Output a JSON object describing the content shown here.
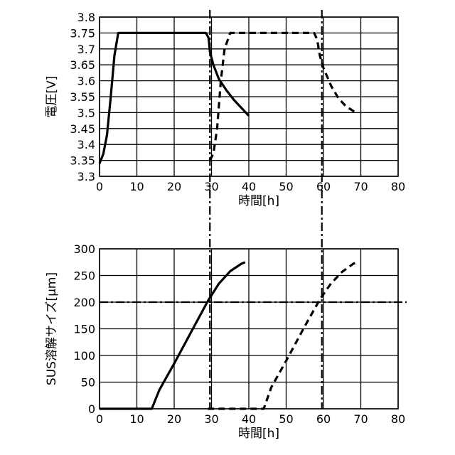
{
  "chart_data": [
    {
      "type": "line",
      "xlabel": "時間[h]",
      "ylabel": "電圧[V]",
      "xlim": [
        0,
        80
      ],
      "ylim": [
        3.3,
        3.8
      ],
      "x_ticks": [
        "0",
        "10",
        "20",
        "30",
        "40",
        "50",
        "60",
        "70",
        "80"
      ],
      "y_ticks": [
        "3.3",
        "3.35",
        "3.4",
        "3.45",
        "3.5",
        "3.55",
        "3.6",
        "3.65",
        "3.7",
        "3.75",
        "3.8"
      ],
      "grid": true,
      "series": [
        {
          "style": "solid",
          "points": [
            [
              0,
              3.34
            ],
            [
              1,
              3.37
            ],
            [
              2,
              3.43
            ],
            [
              3,
              3.55
            ],
            [
              4,
              3.68
            ],
            [
              5,
              3.75
            ],
            [
              10,
              3.75
            ],
            [
              20,
              3.75
            ],
            [
              28.5,
              3.75
            ],
            [
              29.2,
              3.735
            ],
            [
              29.6,
              3.69
            ],
            [
              30.5,
              3.65
            ],
            [
              32,
              3.605
            ],
            [
              34,
              3.57
            ],
            [
              36,
              3.54
            ],
            [
              38,
              3.515
            ],
            [
              40,
              3.49
            ]
          ]
        },
        {
          "style": "dashed",
          "points": [
            [
              29.5,
              3.35
            ],
            [
              30.5,
              3.37
            ],
            [
              31.5,
              3.45
            ],
            [
              32.5,
              3.6
            ],
            [
              33.5,
              3.7
            ],
            [
              35,
              3.75
            ],
            [
              40,
              3.75
            ],
            [
              50,
              3.75
            ],
            [
              57.5,
              3.75
            ],
            [
              58.3,
              3.73
            ],
            [
              59,
              3.68
            ],
            [
              60,
              3.64
            ],
            [
              62,
              3.585
            ],
            [
              64,
              3.545
            ],
            [
              66,
              3.52
            ],
            [
              68,
              3.505
            ],
            [
              69,
              3.5
            ]
          ]
        }
      ],
      "vlines": [
        29,
        59
      ]
    },
    {
      "type": "line",
      "xlabel": "時間[h]",
      "ylabel": "SUS溶解サイズ[μm]",
      "xlim": [
        0,
        80
      ],
      "ylim": [
        0,
        300
      ],
      "x_ticks": [
        "0",
        "10",
        "20",
        "30",
        "40",
        "50",
        "60",
        "70",
        "80"
      ],
      "y_ticks": [
        "0",
        "50",
        "100",
        "150",
        "200",
        "250",
        "300"
      ],
      "grid": true,
      "series": [
        {
          "style": "solid",
          "points": [
            [
              0,
              0
            ],
            [
              14,
              0
            ],
            [
              16,
              35
            ],
            [
              20,
              85
            ],
            [
              25,
              150
            ],
            [
              29,
              202
            ],
            [
              32,
              235
            ],
            [
              35,
              258
            ],
            [
              38,
              272
            ],
            [
              39,
              275
            ]
          ]
        },
        {
          "style": "dashed",
          "points": [
            [
              29,
              0
            ],
            [
              44,
              0
            ],
            [
              46,
              40
            ],
            [
              50,
              90
            ],
            [
              55,
              155
            ],
            [
              59,
              205
            ],
            [
              62,
              235
            ],
            [
              65,
              257
            ],
            [
              68,
              272
            ],
            [
              69,
              275
            ]
          ]
        }
      ],
      "vlines": [
        29,
        59
      ],
      "hlines": [
        200
      ]
    }
  ]
}
